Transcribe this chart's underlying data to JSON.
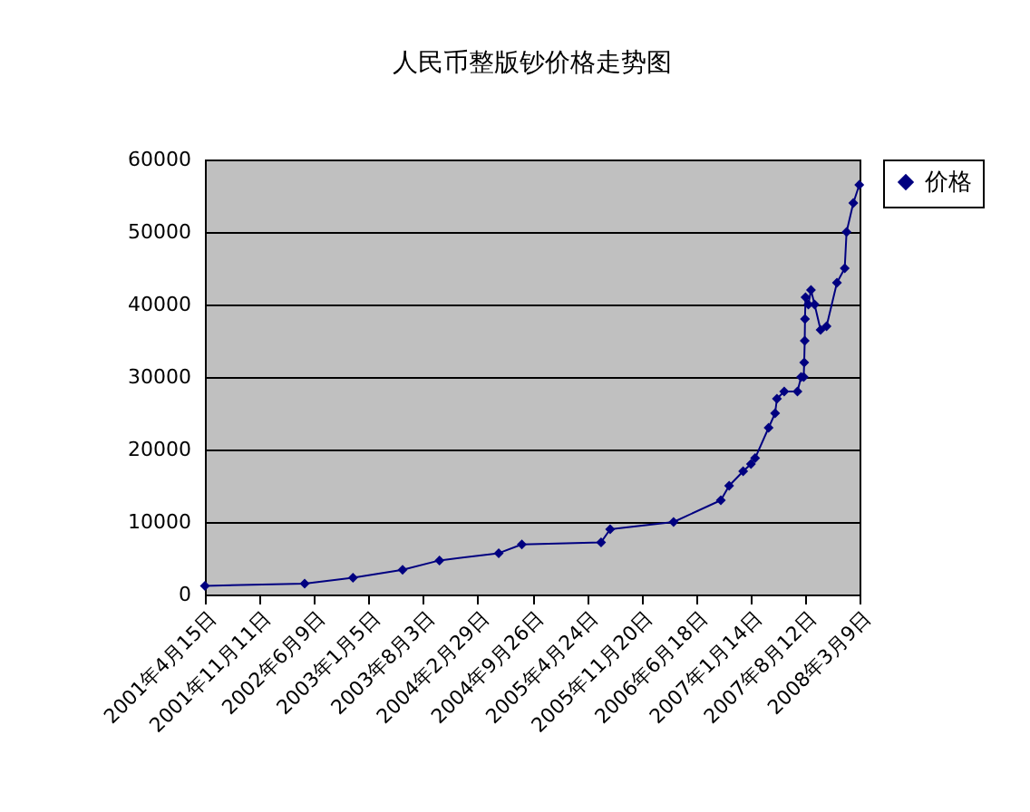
{
  "chart_data": {
    "type": "line",
    "title": "人民币整版钞价格走势图",
    "x": [
      "2001-04-15",
      "2002-05-04",
      "2002-11-06",
      "2003-05-16",
      "2003-10-05",
      "2004-05-20",
      "2004-08-17",
      "2005-06-18",
      "2005-07-23",
      "2006-03-24",
      "2006-09-22",
      "2006-10-24",
      "2006-12-17",
      "2007-01-16",
      "2007-02-01",
      "2007-03-25",
      "2007-04-19",
      "2007-04-26",
      "2007-05-24",
      "2007-07-14",
      "2007-07-28",
      "2007-08-07",
      "2007-08-09",
      "2007-08-11",
      "2007-08-12",
      "2007-08-14",
      "2007-08-25",
      "2007-09-04",
      "2007-09-18",
      "2007-10-11",
      "2007-11-03",
      "2007-12-13",
      "2008-01-12",
      "2008-01-19",
      "2008-02-14",
      "2008-03-08"
    ],
    "series": [
      {
        "name": "价格",
        "color": "#000080",
        "values": [
          1200,
          1500,
          2300,
          3400,
          4700,
          5700,
          6900,
          7200,
          9000,
          10000,
          13000,
          15000,
          17000,
          18000,
          18800,
          23000,
          25000,
          27000,
          28000,
          28000,
          30000,
          30000,
          32000,
          35000,
          38000,
          41000,
          40000,
          42000,
          40000,
          36500,
          37000,
          43000,
          45000,
          50000,
          54000,
          56500
        ]
      }
    ],
    "xlim": [
      "2001-04-15",
      "2008-03-09"
    ],
    "xticks": [
      {
        "value": "2001-04-15",
        "label": "2001年4月15日"
      },
      {
        "value": "2001-11-11",
        "label": "2001年11月11日"
      },
      {
        "value": "2002-06-09",
        "label": "2002年6月9日"
      },
      {
        "value": "2003-01-05",
        "label": "2003年1月5日"
      },
      {
        "value": "2003-08-03",
        "label": "2003年8月3日"
      },
      {
        "value": "2004-02-29",
        "label": "2004年2月29日"
      },
      {
        "value": "2004-09-26",
        "label": "2004年9月26日"
      },
      {
        "value": "2005-04-24",
        "label": "2005年4月24日"
      },
      {
        "value": "2005-11-20",
        "label": "2005年11月20日"
      },
      {
        "value": "2006-06-18",
        "label": "2006年6月18日"
      },
      {
        "value": "2007-01-14",
        "label": "2007年1月14日"
      },
      {
        "value": "2007-08-12",
        "label": "2007年8月12日"
      },
      {
        "value": "2008-03-09",
        "label": "2008年3月9日"
      }
    ],
    "ylim": [
      0,
      60000
    ],
    "yticks": [
      0,
      10000,
      20000,
      30000,
      40000,
      50000,
      60000
    ],
    "grid": "y",
    "legend": "right",
    "marker": "diamond",
    "line_style": "solid"
  }
}
